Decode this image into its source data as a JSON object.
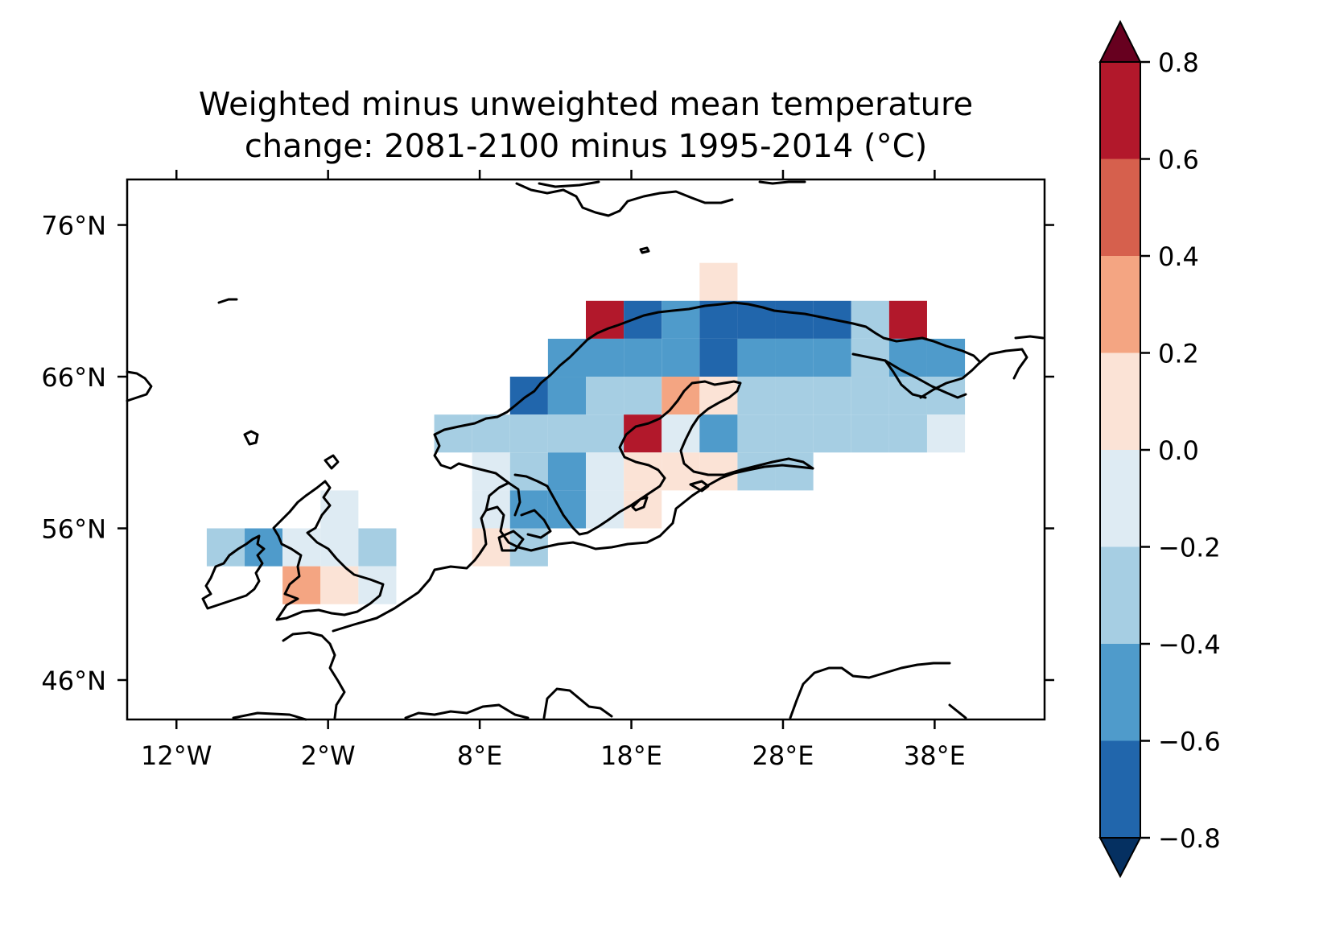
{
  "title": {
    "line1": "Weighted minus unweighted mean temperature",
    "line2": "change: 2081-2100 minus 1995-2014 (°C)"
  },
  "axes": {
    "x_ticks": [
      "12°W",
      "2°W",
      "8°E",
      "18°E",
      "28°E",
      "38°E"
    ],
    "x_tick_values": [
      -12,
      -2,
      8,
      18,
      28,
      38
    ],
    "y_ticks": [
      "76°N",
      "66°N",
      "56°N",
      "46°N"
    ],
    "y_tick_values": [
      76,
      66,
      56,
      46
    ],
    "lon_range": [
      -15.25,
      45.25
    ],
    "lat_range": [
      43.4,
      79.0
    ]
  },
  "colorbar": {
    "ticks": [
      "0.8",
      "0.6",
      "0.4",
      "0.2",
      "0.0",
      "−0.2",
      "−0.4",
      "−0.6",
      "−0.8"
    ],
    "tick_values": [
      0.8,
      0.6,
      0.4,
      0.2,
      0.0,
      -0.2,
      -0.4,
      -0.6,
      -0.8
    ],
    "bins": [
      {
        "range": "0.6 to 0.8",
        "color": "#b2182b"
      },
      {
        "range": "0.4 to 0.6",
        "color": "#d6604d"
      },
      {
        "range": "0.2 to 0.4",
        "color": "#f4a582"
      },
      {
        "range": "0.0 to 0.2",
        "color": "#fbe3d6"
      },
      {
        "range": "-0.2 to 0.0",
        "color": "#deebf3"
      },
      {
        "range": "-0.4 to -0.2",
        "color": "#a6cee3"
      },
      {
        "range": "-0.6 to -0.4",
        "color": "#4f9bcb"
      },
      {
        "range": "-0.8 to -0.6",
        "color": "#2166ac"
      }
    ],
    "extend_max_color": "#67001f",
    "extend_min_color": "#053061"
  },
  "chart_data": {
    "type": "heatmap",
    "title": "Weighted minus unweighted mean temperature change: 2081-2100 minus 1995-2014 (°C)",
    "cell_size_deg": 2.5,
    "cells_note_units": "lon_west, lat_south in degrees; value in °C",
    "cells": [
      {
        "lon": 22.5,
        "lat": 71.0,
        "value": 0.1
      },
      {
        "lon": 15.0,
        "lat": 68.5,
        "value": 0.7
      },
      {
        "lon": 17.5,
        "lat": 68.5,
        "value": -0.7
      },
      {
        "lon": 20.0,
        "lat": 68.5,
        "value": -0.5
      },
      {
        "lon": 22.5,
        "lat": 68.5,
        "value": -0.7
      },
      {
        "lon": 25.0,
        "lat": 68.5,
        "value": -0.7
      },
      {
        "lon": 27.5,
        "lat": 68.5,
        "value": -0.7
      },
      {
        "lon": 30.0,
        "lat": 68.5,
        "value": -0.7
      },
      {
        "lon": 32.5,
        "lat": 68.5,
        "value": -0.3
      },
      {
        "lon": 35.0,
        "lat": 68.5,
        "value": 0.7
      },
      {
        "lon": 12.5,
        "lat": 66.0,
        "value": -0.5
      },
      {
        "lon": 15.0,
        "lat": 66.0,
        "value": -0.5
      },
      {
        "lon": 17.5,
        "lat": 66.0,
        "value": -0.5
      },
      {
        "lon": 20.0,
        "lat": 66.0,
        "value": -0.5
      },
      {
        "lon": 22.5,
        "lat": 66.0,
        "value": -0.7
      },
      {
        "lon": 25.0,
        "lat": 66.0,
        "value": -0.5
      },
      {
        "lon": 27.5,
        "lat": 66.0,
        "value": -0.5
      },
      {
        "lon": 30.0,
        "lat": 66.0,
        "value": -0.5
      },
      {
        "lon": 32.5,
        "lat": 66.0,
        "value": -0.3
      },
      {
        "lon": 35.0,
        "lat": 66.0,
        "value": -0.5
      },
      {
        "lon": 37.5,
        "lat": 66.0,
        "value": -0.5
      },
      {
        "lon": 10.0,
        "lat": 63.5,
        "value": -0.7
      },
      {
        "lon": 12.5,
        "lat": 63.5,
        "value": -0.5
      },
      {
        "lon": 15.0,
        "lat": 63.5,
        "value": -0.3
      },
      {
        "lon": 17.5,
        "lat": 63.5,
        "value": -0.3
      },
      {
        "lon": 20.0,
        "lat": 63.5,
        "value": 0.3
      },
      {
        "lon": 22.5,
        "lat": 63.5,
        "value": 0.1
      },
      {
        "lon": 25.0,
        "lat": 63.5,
        "value": -0.3
      },
      {
        "lon": 27.5,
        "lat": 63.5,
        "value": -0.3
      },
      {
        "lon": 30.0,
        "lat": 63.5,
        "value": -0.3
      },
      {
        "lon": 32.5,
        "lat": 63.5,
        "value": -0.3
      },
      {
        "lon": 35.0,
        "lat": 63.5,
        "value": -0.3
      },
      {
        "lon": 37.5,
        "lat": 63.5,
        "value": -0.3
      },
      {
        "lon": 5.0,
        "lat": 61.0,
        "value": -0.3
      },
      {
        "lon": 7.5,
        "lat": 61.0,
        "value": -0.3
      },
      {
        "lon": 10.0,
        "lat": 61.0,
        "value": -0.3
      },
      {
        "lon": 12.5,
        "lat": 61.0,
        "value": -0.3
      },
      {
        "lon": 15.0,
        "lat": 61.0,
        "value": -0.3
      },
      {
        "lon": 17.5,
        "lat": 61.0,
        "value": 0.7
      },
      {
        "lon": 20.0,
        "lat": 61.0,
        "value": -0.1
      },
      {
        "lon": 22.5,
        "lat": 61.0,
        "value": -0.5
      },
      {
        "lon": 25.0,
        "lat": 61.0,
        "value": -0.3
      },
      {
        "lon": 27.5,
        "lat": 61.0,
        "value": -0.3
      },
      {
        "lon": 30.0,
        "lat": 61.0,
        "value": -0.3
      },
      {
        "lon": 32.5,
        "lat": 61.0,
        "value": -0.3
      },
      {
        "lon": 35.0,
        "lat": 61.0,
        "value": -0.3
      },
      {
        "lon": 37.5,
        "lat": 61.0,
        "value": -0.1
      },
      {
        "lon": 7.5,
        "lat": 58.5,
        "value": -0.1
      },
      {
        "lon": 10.0,
        "lat": 58.5,
        "value": -0.3
      },
      {
        "lon": 12.5,
        "lat": 58.5,
        "value": -0.5
      },
      {
        "lon": 15.0,
        "lat": 58.5,
        "value": -0.1
      },
      {
        "lon": 17.5,
        "lat": 58.5,
        "value": 0.1
      },
      {
        "lon": 20.0,
        "lat": 58.5,
        "value": 0.1
      },
      {
        "lon": 22.5,
        "lat": 58.5,
        "value": 0.1
      },
      {
        "lon": 25.0,
        "lat": 58.5,
        "value": -0.3
      },
      {
        "lon": 27.5,
        "lat": 58.5,
        "value": -0.3
      },
      {
        "lon": -2.5,
        "lat": 56.0,
        "value": -0.1
      },
      {
        "lon": 7.5,
        "lat": 56.0,
        "value": -0.1
      },
      {
        "lon": 10.0,
        "lat": 56.0,
        "value": -0.5
      },
      {
        "lon": 12.5,
        "lat": 56.0,
        "value": -0.5
      },
      {
        "lon": 15.0,
        "lat": 56.0,
        "value": -0.1
      },
      {
        "lon": 17.5,
        "lat": 56.0,
        "value": 0.1
      },
      {
        "lon": -10.0,
        "lat": 53.5,
        "value": -0.3
      },
      {
        "lon": -7.5,
        "lat": 53.5,
        "value": -0.5
      },
      {
        "lon": -5.0,
        "lat": 53.5,
        "value": -0.1
      },
      {
        "lon": -2.5,
        "lat": 53.5,
        "value": -0.1
      },
      {
        "lon": 0.0,
        "lat": 53.5,
        "value": -0.3
      },
      {
        "lon": 7.5,
        "lat": 53.5,
        "value": 0.1
      },
      {
        "lon": 10.0,
        "lat": 53.5,
        "value": -0.3
      },
      {
        "lon": -5.0,
        "lat": 51.0,
        "value": 0.3
      },
      {
        "lon": -2.5,
        "lat": 51.0,
        "value": 0.1
      },
      {
        "lon": 0.0,
        "lat": 51.0,
        "value": -0.1
      }
    ]
  }
}
